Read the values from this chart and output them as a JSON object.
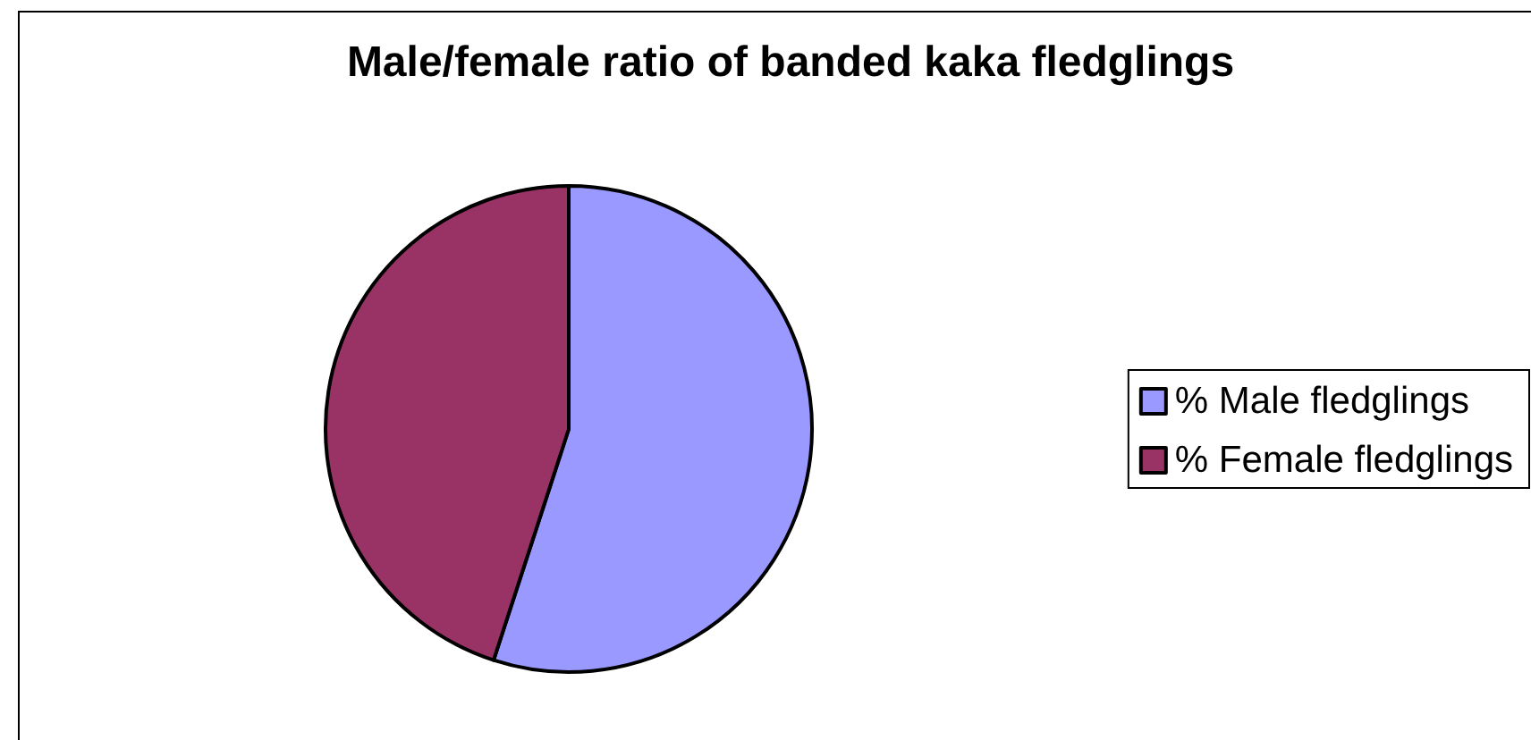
{
  "chart_data": {
    "type": "pie",
    "title": "Male/female ratio of banded kaka fledglings",
    "categories": [
      "% Male fledglings",
      "% Female fledglings"
    ],
    "values": [
      55,
      45
    ],
    "colors": [
      "#9999ff",
      "#993366"
    ],
    "legend": "right"
  }
}
